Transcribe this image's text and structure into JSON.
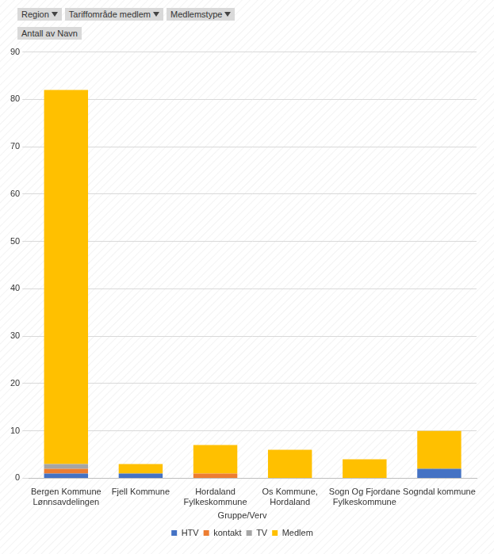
{
  "chart_data": {
    "type": "bar",
    "filters": [
      "Region",
      "Tariffområde medlem",
      "Medlemstype"
    ],
    "y_label": "Antall av Navn",
    "legend_title": "Gruppe/Verv",
    "categories": [
      "Bergen Kommune Lønnsavdelingen",
      "Fjell Kommune",
      "Hordaland Fylkeskommune",
      "Os Kommune, Hordaland",
      "Sogn Og Fjordane Fylkeskommune",
      "Sogndal kommune"
    ],
    "series": [
      {
        "name": "HTV",
        "color": "#4472c4",
        "values": [
          1,
          1,
          0,
          0,
          0,
          2
        ]
      },
      {
        "name": "kontakt",
        "color": "#ed7d31",
        "values": [
          1,
          0,
          1,
          0,
          0,
          0
        ]
      },
      {
        "name": "TV",
        "color": "#a5a5a5",
        "values": [
          1,
          0,
          0,
          0,
          0,
          0
        ]
      },
      {
        "name": "Medlem",
        "color": "#ffc000",
        "values": [
          79,
          2,
          6,
          6,
          4,
          8
        ]
      }
    ],
    "stacked": true,
    "ylim": [
      0,
      90
    ],
    "yticks": [
      0,
      10,
      20,
      30,
      40,
      50,
      60,
      70,
      80,
      90
    ],
    "grid": true,
    "legend": "bottom"
  }
}
